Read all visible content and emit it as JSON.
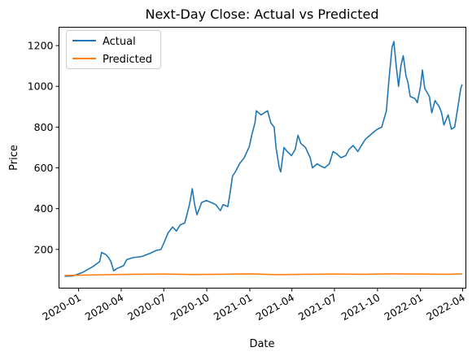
{
  "chart_data": {
    "type": "line",
    "title": "Next-Day Close: Actual vs Predicted",
    "xlabel": "Date",
    "ylabel": "Price",
    "x_range": [
      "2019-11-20",
      "2022-04-08"
    ],
    "ylim": [
      10,
      1290
    ],
    "y_ticks": [
      200,
      400,
      600,
      800,
      1000,
      1200
    ],
    "x_ticks": [
      {
        "date": "2020-01-01",
        "label": "2020-01"
      },
      {
        "date": "2020-04-01",
        "label": "2020-04"
      },
      {
        "date": "2020-07-01",
        "label": "2020-07"
      },
      {
        "date": "2020-10-01",
        "label": "2020-10"
      },
      {
        "date": "2021-01-01",
        "label": "2021-01"
      },
      {
        "date": "2021-04-01",
        "label": "2021-04"
      },
      {
        "date": "2021-07-01",
        "label": "2021-07"
      },
      {
        "date": "2021-10-01",
        "label": "2021-10"
      },
      {
        "date": "2022-01-01",
        "label": "2022-01"
      },
      {
        "date": "2022-04-01",
        "label": "2022-04"
      }
    ],
    "legend_position": "top-left",
    "series": [
      {
        "name": "Actual",
        "color": "#1f77b4",
        "points": [
          [
            "2019-12-02",
            68
          ],
          [
            "2019-12-20",
            70
          ],
          [
            "2020-01-10",
            88
          ],
          [
            "2020-01-31",
            115
          ],
          [
            "2020-02-15",
            140
          ],
          [
            "2020-02-19",
            185
          ],
          [
            "2020-02-28",
            175
          ],
          [
            "2020-03-05",
            160
          ],
          [
            "2020-03-10",
            140
          ],
          [
            "2020-03-16",
            95
          ],
          [
            "2020-03-22",
            105
          ],
          [
            "2020-04-06",
            120
          ],
          [
            "2020-04-13",
            150
          ],
          [
            "2020-04-27",
            160
          ],
          [
            "2020-05-15",
            165
          ],
          [
            "2020-06-01",
            180
          ],
          [
            "2020-06-15",
            195
          ],
          [
            "2020-06-25",
            200
          ],
          [
            "2020-07-01",
            230
          ],
          [
            "2020-07-10",
            280
          ],
          [
            "2020-07-20",
            310
          ],
          [
            "2020-07-28",
            290
          ],
          [
            "2020-08-05",
            320
          ],
          [
            "2020-08-15",
            330
          ],
          [
            "2020-08-25",
            420
          ],
          [
            "2020-08-31",
            498
          ],
          [
            "2020-09-05",
            420
          ],
          [
            "2020-09-10",
            370
          ],
          [
            "2020-09-20",
            430
          ],
          [
            "2020-09-30",
            440
          ],
          [
            "2020-10-10",
            430
          ],
          [
            "2020-10-20",
            420
          ],
          [
            "2020-10-30",
            390
          ],
          [
            "2020-11-05",
            420
          ],
          [
            "2020-11-15",
            410
          ],
          [
            "2020-11-20",
            480
          ],
          [
            "2020-11-25",
            560
          ],
          [
            "2020-12-01",
            580
          ],
          [
            "2020-12-10",
            620
          ],
          [
            "2020-12-20",
            650
          ],
          [
            "2020-12-31",
            705
          ],
          [
            "2021-01-05",
            760
          ],
          [
            "2021-01-12",
            820
          ],
          [
            "2021-01-15",
            880
          ],
          [
            "2021-01-25",
            860
          ],
          [
            "2021-02-01",
            870
          ],
          [
            "2021-02-08",
            880
          ],
          [
            "2021-02-15",
            820
          ],
          [
            "2021-02-22",
            800
          ],
          [
            "2021-02-26",
            700
          ],
          [
            "2021-03-05",
            600
          ],
          [
            "2021-03-08",
            580
          ],
          [
            "2021-03-15",
            700
          ],
          [
            "2021-03-22",
            680
          ],
          [
            "2021-03-31",
            660
          ],
          [
            "2021-04-08",
            690
          ],
          [
            "2021-04-14",
            760
          ],
          [
            "2021-04-20",
            720
          ],
          [
            "2021-04-30",
            700
          ],
          [
            "2021-05-10",
            650
          ],
          [
            "2021-05-15",
            600
          ],
          [
            "2021-05-25",
            620
          ],
          [
            "2021-06-01",
            610
          ],
          [
            "2021-06-10",
            600
          ],
          [
            "2021-06-20",
            620
          ],
          [
            "2021-06-28",
            680
          ],
          [
            "2021-07-05",
            670
          ],
          [
            "2021-07-15",
            650
          ],
          [
            "2021-07-25",
            660
          ],
          [
            "2021-08-01",
            690
          ],
          [
            "2021-08-10",
            710
          ],
          [
            "2021-08-20",
            680
          ],
          [
            "2021-08-25",
            700
          ],
          [
            "2021-09-05",
            740
          ],
          [
            "2021-09-15",
            760
          ],
          [
            "2021-09-25",
            780
          ],
          [
            "2021-10-01",
            790
          ],
          [
            "2021-10-10",
            800
          ],
          [
            "2021-10-20",
            880
          ],
          [
            "2021-10-25",
            1020
          ],
          [
            "2021-11-01",
            1190
          ],
          [
            "2021-11-05",
            1220
          ],
          [
            "2021-11-10",
            1100
          ],
          [
            "2021-11-15",
            1000
          ],
          [
            "2021-11-20",
            1100
          ],
          [
            "2021-11-25",
            1150
          ],
          [
            "2021-12-01",
            1050
          ],
          [
            "2021-12-05",
            1020
          ],
          [
            "2021-12-10",
            950
          ],
          [
            "2021-12-20",
            940
          ],
          [
            "2021-12-25",
            920
          ],
          [
            "2022-01-01",
            1000
          ],
          [
            "2022-01-05",
            1080
          ],
          [
            "2022-01-10",
            990
          ],
          [
            "2022-01-20",
            950
          ],
          [
            "2022-01-25",
            870
          ],
          [
            "2022-02-01",
            930
          ],
          [
            "2022-02-10",
            900
          ],
          [
            "2022-02-15",
            870
          ],
          [
            "2022-02-20",
            810
          ],
          [
            "2022-03-01",
            860
          ],
          [
            "2022-03-08",
            790
          ],
          [
            "2022-03-15",
            800
          ],
          [
            "2022-03-22",
            900
          ],
          [
            "2022-03-28",
            990
          ],
          [
            "2022-03-31",
            1010
          ]
        ]
      },
      {
        "name": "Predicted",
        "color": "#ff7f0e",
        "points": [
          [
            "2019-12-02",
            72
          ],
          [
            "2020-01-15",
            74
          ],
          [
            "2020-03-01",
            76
          ],
          [
            "2020-05-01",
            78
          ],
          [
            "2020-07-01",
            79
          ],
          [
            "2020-09-01",
            77
          ],
          [
            "2020-11-01",
            78
          ],
          [
            "2021-01-01",
            80
          ],
          [
            "2021-03-01",
            76
          ],
          [
            "2021-05-01",
            78
          ],
          [
            "2021-07-01",
            79
          ],
          [
            "2021-09-01",
            78
          ],
          [
            "2021-11-01",
            80
          ],
          [
            "2022-01-01",
            79
          ],
          [
            "2022-03-01",
            78
          ],
          [
            "2022-03-31",
            80
          ]
        ]
      }
    ]
  }
}
